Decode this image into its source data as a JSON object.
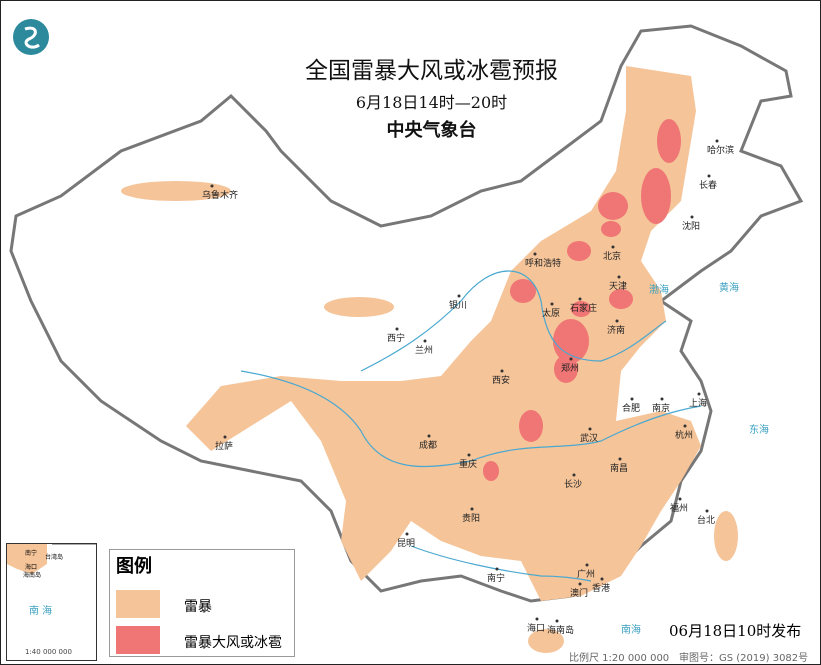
{
  "header": {
    "title": "全国雷暴大风或冰雹预报",
    "period": "6月18日14时—20时",
    "issuer": "中央气象台",
    "logo": "cma-logo"
  },
  "legend": {
    "title": "图例",
    "items": [
      {
        "label": "雷暴",
        "color": "#f5c499"
      },
      {
        "label": "雷暴大风或冰雹",
        "color": "#f07575"
      }
    ]
  },
  "footer": {
    "published": "06月18日10时发布",
    "scale": "比例尺 1:20 000 000",
    "review_no": "审图号：GS (2019) 3082号"
  },
  "inset": {
    "sea": "南 海",
    "labels": [
      "南宁",
      "海口",
      "海南岛",
      "台湾岛"
    ],
    "scale": "1:40 000 000"
  },
  "cities": [
    "乌鲁木齐",
    "哈尔滨",
    "长春",
    "沈阳",
    "呼和浩特",
    "北京",
    "天津",
    "石家庄",
    "太原",
    "济南",
    "银川",
    "西宁",
    "兰州",
    "郑州",
    "西安",
    "合肥",
    "南京",
    "上海",
    "武汉",
    "杭州",
    "成都",
    "重庆",
    "拉萨",
    "长沙",
    "南昌",
    "贵阳",
    "福州",
    "台北",
    "昆明",
    "南宁",
    "广州",
    "香港",
    "澳门",
    "海口",
    "海南岛"
  ],
  "seas": [
    "渤海",
    "黄海",
    "东海",
    "南海"
  ]
}
